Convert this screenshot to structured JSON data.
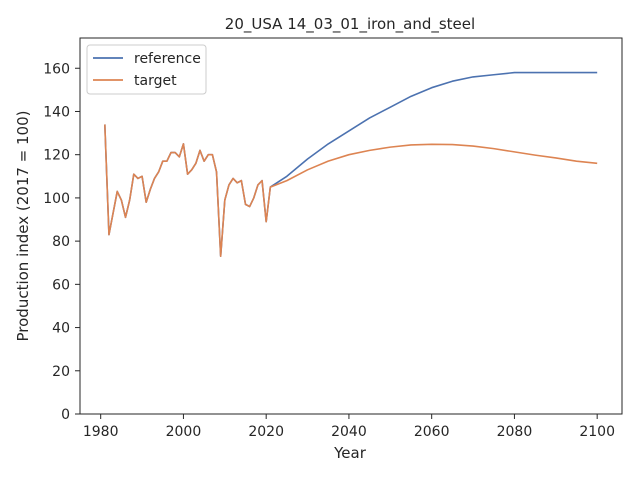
{
  "chart_data": {
    "type": "line",
    "title": "20_USA 14_03_01_iron_and_steel",
    "xlabel": "Year",
    "ylabel": "Production index (2017 = 100)",
    "xlim": [
      1975,
      2106
    ],
    "ylim": [
      0,
      174
    ],
    "x_ticks": [
      1980,
      2000,
      2020,
      2040,
      2060,
      2080,
      2100
    ],
    "y_ticks": [
      0,
      20,
      40,
      60,
      80,
      100,
      120,
      140,
      160
    ],
    "grid": false,
    "legend_position": "top-left",
    "series": [
      {
        "name": "reference",
        "color": "#4c72b0",
        "x": [
          1981,
          1982,
          1983,
          1984,
          1985,
          1986,
          1987,
          1988,
          1989,
          1990,
          1991,
          1992,
          1993,
          1994,
          1995,
          1996,
          1997,
          1998,
          1999,
          2000,
          2001,
          2002,
          2003,
          2004,
          2005,
          2006,
          2007,
          2008,
          2009,
          2010,
          2011,
          2012,
          2013,
          2014,
          2015,
          2016,
          2017,
          2018,
          2019,
          2020,
          2021,
          2025,
          2030,
          2035,
          2040,
          2045,
          2050,
          2055,
          2060,
          2065,
          2070,
          2075,
          2080,
          2085,
          2090,
          2095,
          2100
        ],
        "y": [
          134,
          83,
          93,
          103,
          99,
          91,
          99,
          111,
          109,
          110,
          98,
          104,
          109,
          112,
          117,
          117,
          121,
          121,
          119,
          125,
          111,
          113,
          116,
          122,
          117,
          120,
          120,
          112,
          73,
          99,
          106,
          109,
          107,
          108,
          97,
          96,
          100,
          106,
          108,
          89,
          105,
          110,
          118,
          125,
          131,
          137,
          142,
          147,
          151,
          154,
          156,
          157,
          158,
          158,
          158,
          158,
          158
        ]
      },
      {
        "name": "target",
        "color": "#dd8452",
        "x": [
          1981,
          1982,
          1983,
          1984,
          1985,
          1986,
          1987,
          1988,
          1989,
          1990,
          1991,
          1992,
          1993,
          1994,
          1995,
          1996,
          1997,
          1998,
          1999,
          2000,
          2001,
          2002,
          2003,
          2004,
          2005,
          2006,
          2007,
          2008,
          2009,
          2010,
          2011,
          2012,
          2013,
          2014,
          2015,
          2016,
          2017,
          2018,
          2019,
          2020,
          2021,
          2025,
          2030,
          2035,
          2040,
          2045,
          2050,
          2055,
          2060,
          2065,
          2070,
          2075,
          2080,
          2085,
          2090,
          2095,
          2100
        ],
        "y": [
          134,
          83,
          93,
          103,
          99,
          91,
          99,
          111,
          109,
          110,
          98,
          104,
          109,
          112,
          117,
          117,
          121,
          121,
          119,
          125,
          111,
          113,
          116,
          122,
          117,
          120,
          120,
          112,
          73,
          99,
          106,
          109,
          107,
          108,
          97,
          96,
          100,
          106,
          108,
          89,
          105,
          108,
          113,
          117,
          120,
          122,
          123.5,
          124.5,
          124.8,
          124.7,
          124,
          122.8,
          121.3,
          119.8,
          118.5,
          117,
          116
        ]
      }
    ]
  }
}
